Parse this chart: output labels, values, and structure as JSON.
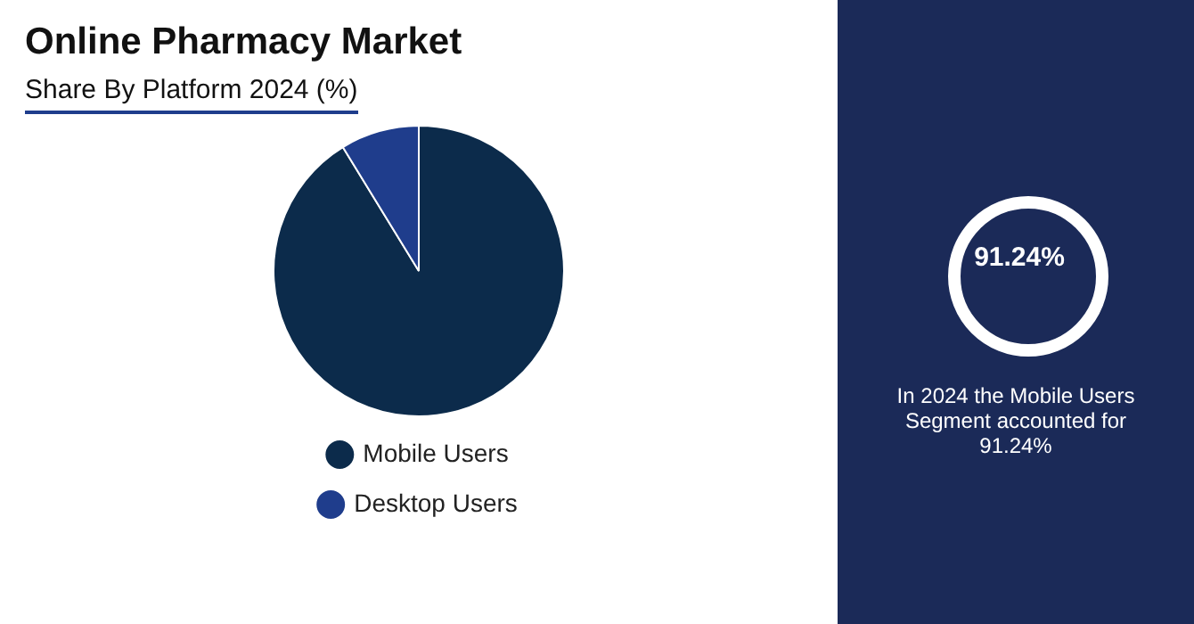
{
  "chart_data": {
    "type": "pie",
    "title": "Online Pharmacy Market",
    "subtitle": "Share By Platform 2024 (%)",
    "categories": [
      "Mobile Users",
      "Desktop Users"
    ],
    "values": [
      91.24,
      8.76
    ],
    "colors": [
      "#0c2b4b",
      "#1f3d8c"
    ],
    "legend": "bottom",
    "annotations": [
      "91.24%",
      "In 2024 the Mobile Users Segment accounted for 91.24%"
    ]
  }
}
